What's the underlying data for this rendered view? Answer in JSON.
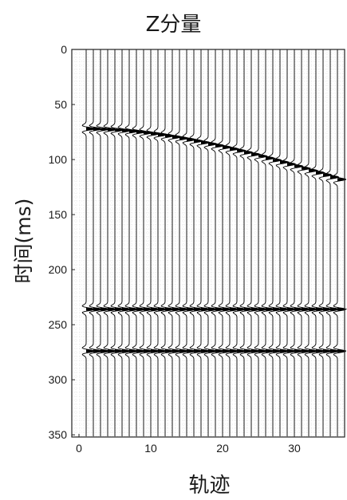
{
  "chart_data": {
    "type": "seismic-wiggle",
    "title": "Z分量",
    "xlabel": "轨迹",
    "ylabel": "时间(ms)",
    "xlim": [
      -1,
      37
    ],
    "ylim": [
      0,
      352
    ],
    "y_inverted": true,
    "xticks": [
      0,
      10,
      20,
      30
    ],
    "yticks": [
      0,
      50,
      100,
      150,
      200,
      250,
      300,
      350
    ],
    "trace_count": 36,
    "first_trace": 1,
    "grid": true,
    "events": [
      {
        "type": "hyperbolic",
        "t0_ms": 72,
        "apex_trace": 0,
        "t_far_ms": 118,
        "far_trace": 36
      },
      {
        "type": "flat",
        "t_ms": 236
      },
      {
        "type": "flat",
        "t_ms": 274
      }
    ]
  }
}
